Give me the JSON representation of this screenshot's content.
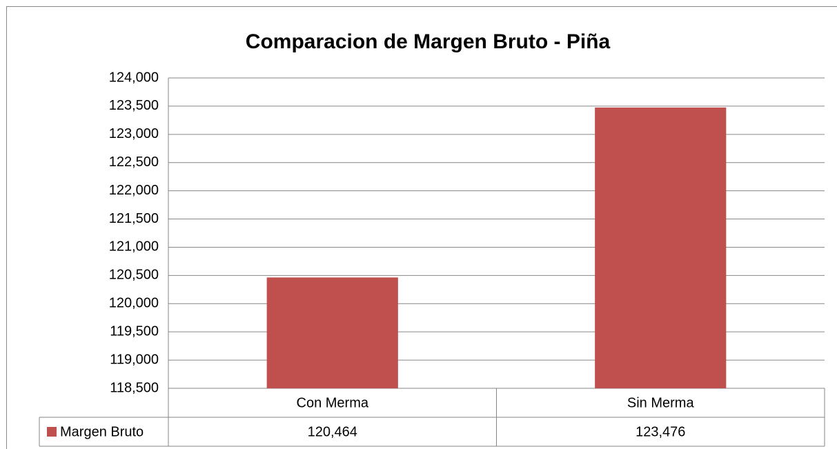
{
  "chart_data": {
    "type": "bar",
    "title": "Comparacion de Margen Bruto - Piña",
    "categories": [
      "Con Merma",
      "Sin Merma"
    ],
    "series": [
      {
        "name": "Margen Bruto",
        "color": "#c0504d",
        "values": [
          120464,
          123476
        ],
        "value_labels": [
          "120,464",
          "123,476"
        ]
      }
    ],
    "ylim": [
      118500,
      124000
    ],
    "yticks": [
      {
        "value": 118500,
        "label": "118,500"
      },
      {
        "value": 119000,
        "label": "119,000"
      },
      {
        "value": 119500,
        "label": "119,500"
      },
      {
        "value": 120000,
        "label": "120,000"
      },
      {
        "value": 120500,
        "label": "120,500"
      },
      {
        "value": 121000,
        "label": "121,000"
      },
      {
        "value": 121500,
        "label": "121,500"
      },
      {
        "value": 122000,
        "label": "122,000"
      },
      {
        "value": 122500,
        "label": "122,500"
      },
      {
        "value": 123000,
        "label": "123,000"
      },
      {
        "value": 123500,
        "label": "123,500"
      },
      {
        "value": 124000,
        "label": "124,000"
      }
    ],
    "grid": true
  }
}
